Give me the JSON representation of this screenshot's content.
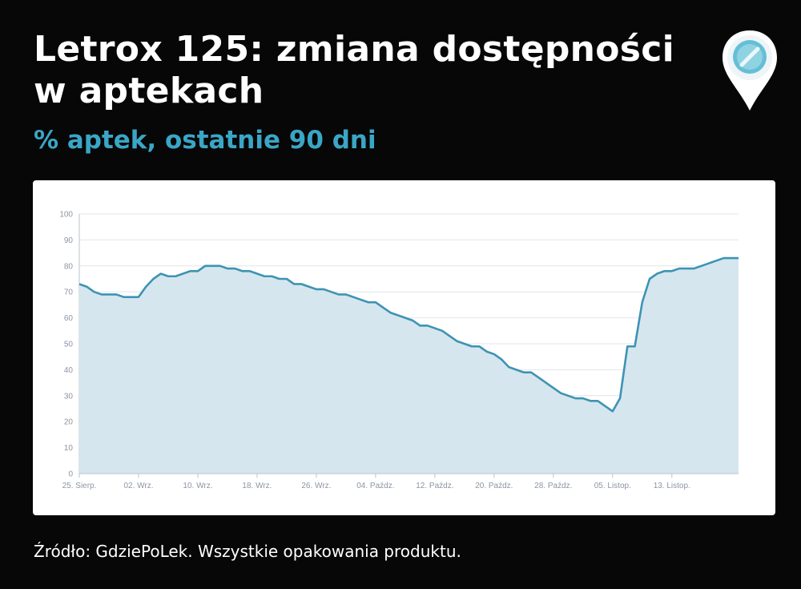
{
  "header": {
    "title": "Letrox 125: zmiana dostępności w aptekach",
    "subtitle": "% aptek, ostatnie 90 dni"
  },
  "footer": {
    "source": "Źródło: GdziePoLek. Wszystkie opakowania produktu."
  },
  "logo": {
    "icon": "pill-location-pin-icon"
  },
  "chart_data": {
    "type": "area",
    "title": "Letrox 125: zmiana dostępności w aptekach",
    "subtitle": "% aptek, ostatnie 90 dni",
    "xlabel": "",
    "ylabel": "",
    "ylim": [
      0,
      100
    ],
    "yticks": [
      0,
      10,
      20,
      30,
      40,
      50,
      60,
      70,
      80,
      90,
      100
    ],
    "xticks": [
      {
        "label": "25. Sierp.",
        "day": 0
      },
      {
        "label": "02. Wrz.",
        "day": 8
      },
      {
        "label": "10. Wrz.",
        "day": 16
      },
      {
        "label": "18. Wrz.",
        "day": 24
      },
      {
        "label": "26. Wrz.",
        "day": 32
      },
      {
        "label": "04. Paźdz.",
        "day": 40
      },
      {
        "label": "12. Paźdz.",
        "day": 48
      },
      {
        "label": "20. Paźdz.",
        "day": 56
      },
      {
        "label": "28. Paźdz.",
        "day": 64
      },
      {
        "label": "05. Listop.",
        "day": 72
      },
      {
        "label": "13. Listop.",
        "day": 80
      }
    ],
    "grid": true,
    "line_color": "#3e93b3",
    "fill_color": "#d6e6ee",
    "series": [
      {
        "values": [
          73,
          72,
          70,
          69,
          69,
          69,
          68,
          68,
          68,
          72,
          75,
          77,
          76,
          76,
          77,
          78,
          78,
          80,
          80,
          80,
          79,
          79,
          78,
          78,
          77,
          76,
          76,
          75,
          75,
          73,
          73,
          72,
          71,
          71,
          70,
          69,
          69,
          68,
          67,
          66,
          66,
          64,
          62,
          61,
          60,
          59,
          57,
          57,
          56,
          55,
          53,
          51,
          50,
          49,
          49,
          47,
          46,
          44,
          41,
          40,
          39,
          39,
          37,
          35,
          33,
          31,
          30,
          29,
          29,
          28,
          28,
          26,
          24,
          29,
          49,
          49,
          66,
          75,
          77,
          78,
          78,
          79,
          79,
          79,
          80,
          81,
          82,
          83,
          83,
          83
        ]
      }
    ]
  }
}
